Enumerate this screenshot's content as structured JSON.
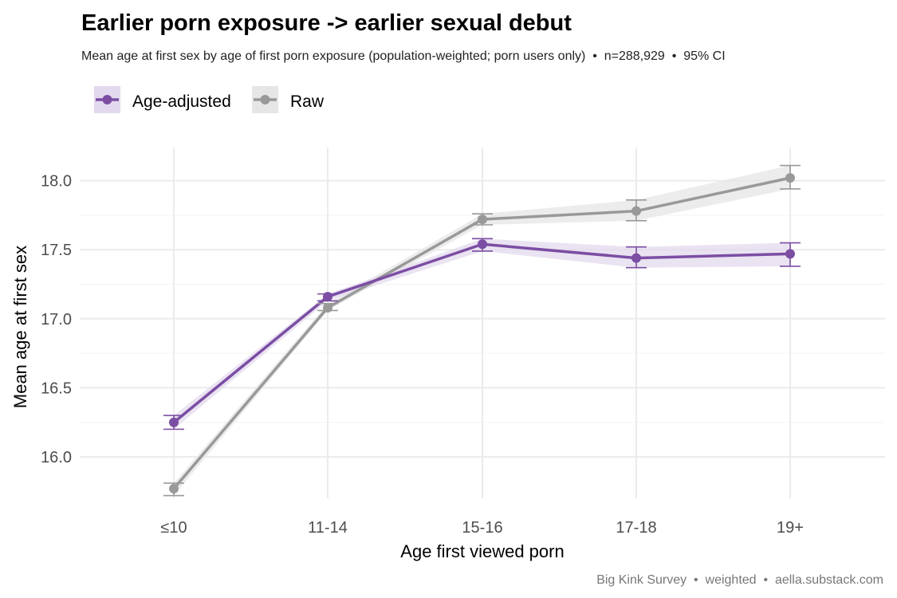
{
  "chart_data": {
    "type": "line",
    "title": "Earlier porn exposure -> earlier sexual debut",
    "subtitle": "Mean age at first sex by age of first porn exposure (population-weighted; porn users only)  •  n=288,929  •  95% CI",
    "xlabel": "Age first viewed porn",
    "ylabel": "Mean age at first sex",
    "caption": "Big Kink Survey  •  weighted  •  aella.substack.com",
    "categories": [
      "≤10",
      "11-14",
      "15-16",
      "17-18",
      "19+"
    ],
    "ylim": [
      15.7,
      18.24
    ],
    "yticks": [
      16.0,
      16.5,
      17.0,
      17.5,
      18.0
    ],
    "ytick_labels": [
      "16.0",
      "16.5",
      "17.0",
      "17.5",
      "18.0"
    ],
    "grid": true,
    "legend_position": "top-left",
    "series": [
      {
        "name": "Raw",
        "color": "#999999",
        "band_color": "#e6e6e6",
        "values": [
          15.77,
          17.08,
          17.72,
          17.78,
          18.02
        ],
        "ci_low": [
          15.72,
          17.06,
          17.68,
          17.71,
          17.94
        ],
        "ci_high": [
          15.81,
          17.11,
          17.76,
          17.86,
          18.11
        ]
      },
      {
        "name": "Age-adjusted",
        "color": "#7b4ea3",
        "band_color": "#e3d9ee",
        "values": [
          16.25,
          17.16,
          17.54,
          17.44,
          17.47
        ],
        "ci_low": [
          16.2,
          17.13,
          17.49,
          17.37,
          17.38
        ],
        "ci_high": [
          16.3,
          17.18,
          17.58,
          17.52,
          17.55
        ]
      }
    ]
  }
}
